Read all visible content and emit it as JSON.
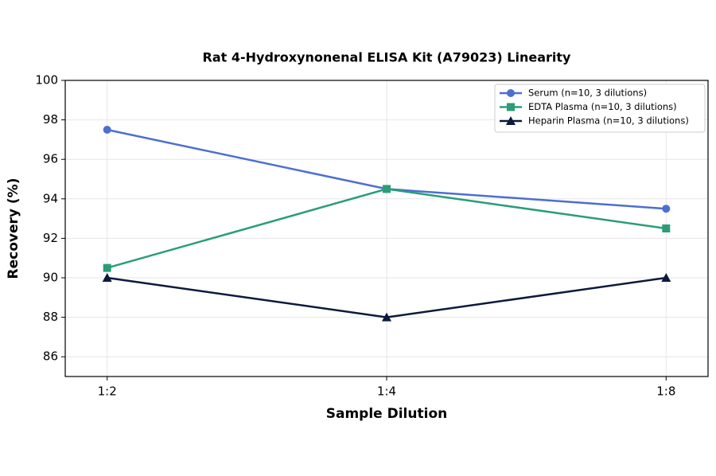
{
  "chart_data": {
    "type": "line",
    "title": "Rat 4-Hydroxynonenal ELISA Kit (A79023) Linearity",
    "x_label": "Sample Dilution",
    "y_label": "Recovery (%)",
    "categories": [
      "1:2",
      "1:4",
      "1:8"
    ],
    "series": [
      {
        "name": "Serum (n=10, 3 dilutions)",
        "color": "#4c6fd0",
        "marker": "circle",
        "values": [
          97.5,
          94.5,
          93.5
        ]
      },
      {
        "name": "EDTA Plasma (n=10, 3 dilutions)",
        "color": "#2a9d78",
        "marker": "square",
        "values": [
          90.5,
          94.5,
          92.5
        ]
      },
      {
        "name": "Heparin Plasma (n=10, 3 dilutions)",
        "color": "#0d1a3e",
        "marker": "triangle",
        "values": [
          90,
          88,
          90
        ]
      }
    ],
    "ylim": [
      85,
      100
    ],
    "yticks": [
      86,
      88,
      90,
      92,
      94,
      96,
      98,
      100
    ],
    "grid": true,
    "legend": "upper right"
  }
}
